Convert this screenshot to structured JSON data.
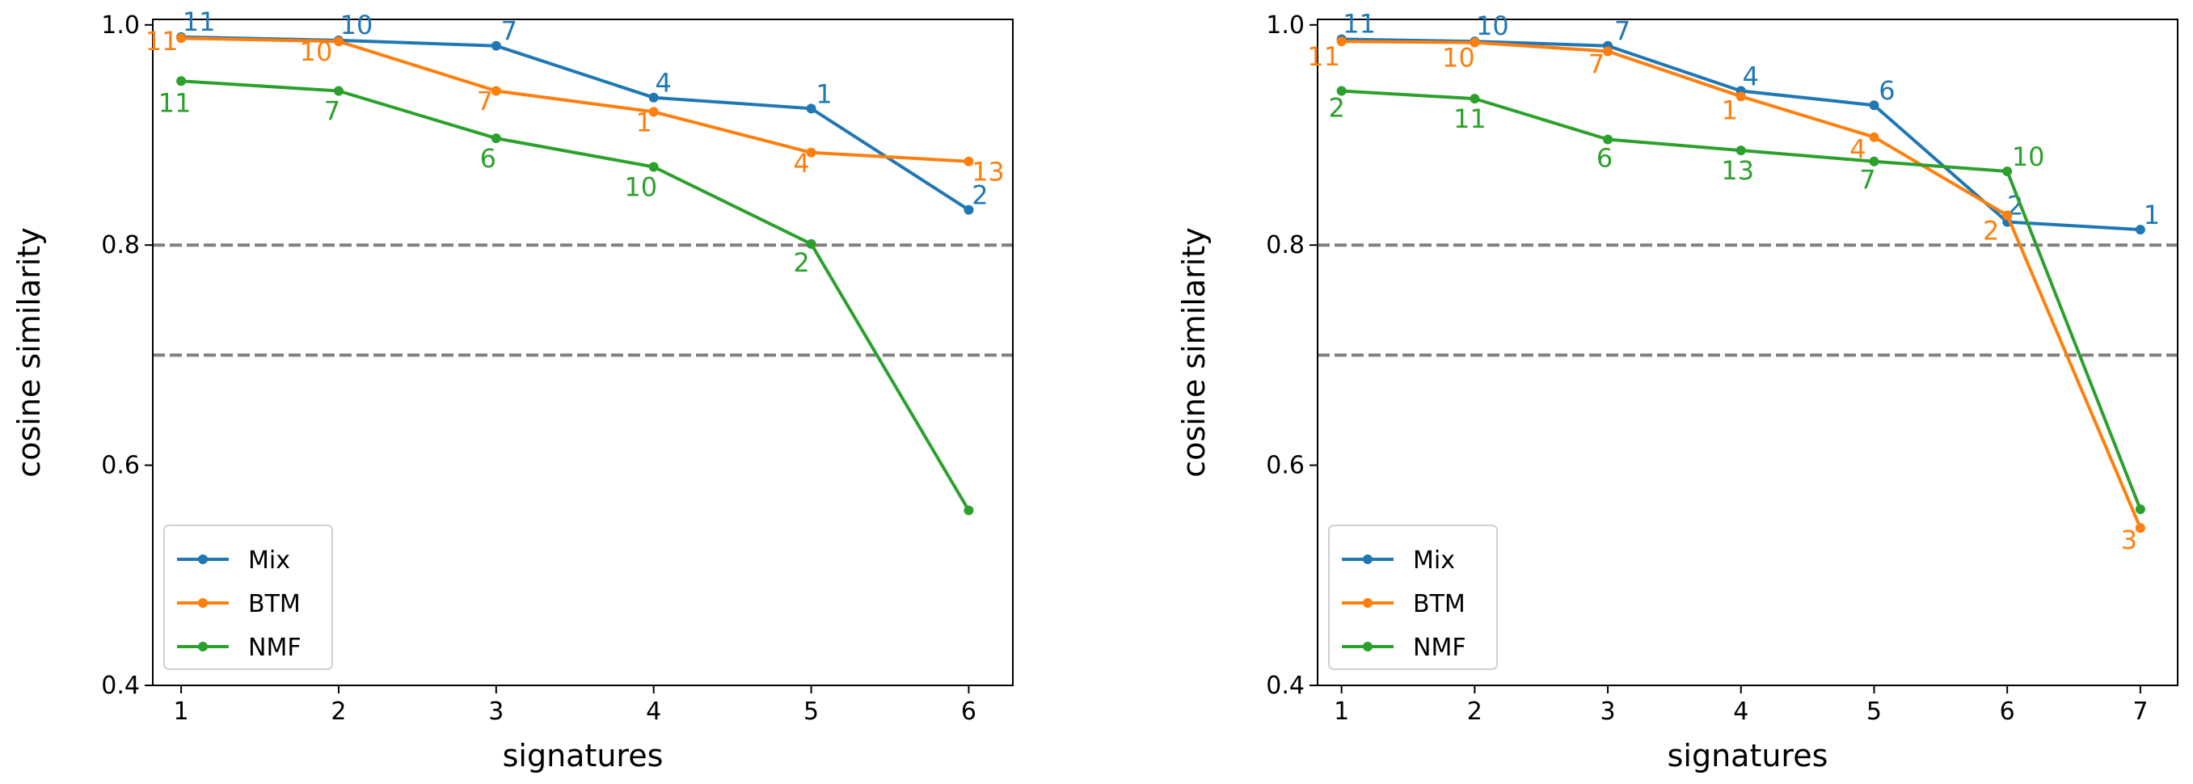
{
  "chart_data": [
    {
      "type": "line",
      "title": "",
      "xlabel": "signatures",
      "ylabel": "cosine similarity",
      "xlim": [
        0.82,
        6.28
      ],
      "ylim": [
        0.4,
        1.005
      ],
      "xticks": [
        1,
        2,
        3,
        4,
        5,
        6
      ],
      "yticks": [
        0.4,
        0.6,
        0.8,
        1.0
      ],
      "ytick_labels": [
        "0.4",
        "0.6",
        "0.8",
        "1.0"
      ],
      "reference_lines": [
        0.8,
        0.7
      ],
      "legend_position": "bottom-left",
      "series": [
        {
          "name": "Mix",
          "color": "#1f77b4",
          "x": [
            1,
            2,
            3,
            4,
            5,
            6
          ],
          "values": [
            0.989,
            0.986,
            0.981,
            0.934,
            0.924,
            0.832
          ],
          "point_labels": [
            "11",
            "10",
            "7",
            "4",
            "1",
            "2"
          ]
        },
        {
          "name": "BTM",
          "color": "#ff7f0e",
          "x": [
            1,
            2,
            3,
            4,
            5,
            6
          ],
          "values": [
            0.988,
            0.985,
            0.94,
            0.921,
            0.884,
            0.876
          ],
          "point_labels": [
            "11",
            "10",
            "7",
            "1",
            "4",
            "13"
          ]
        },
        {
          "name": "NMF",
          "color": "#2ca02c",
          "x": [
            1,
            2,
            3,
            4,
            5,
            6
          ],
          "values": [
            0.949,
            0.94,
            0.897,
            0.871,
            0.801,
            0.559
          ],
          "point_labels": [
            "11",
            "7",
            "6",
            "10",
            "2",
            ""
          ]
        }
      ]
    },
    {
      "type": "line",
      "title": "",
      "xlabel": "signatures",
      "ylabel": "cosine similarity",
      "xlim": [
        0.82,
        7.28
      ],
      "ylim": [
        0.4,
        1.005
      ],
      "xticks": [
        1,
        2,
        3,
        4,
        5,
        6,
        7
      ],
      "yticks": [
        0.4,
        0.6,
        0.8,
        1.0
      ],
      "ytick_labels": [
        "0.4",
        "0.6",
        "0.8",
        "1.0"
      ],
      "reference_lines": [
        0.8,
        0.7
      ],
      "legend_position": "bottom-left",
      "series": [
        {
          "name": "Mix",
          "color": "#1f77b4",
          "x": [
            1,
            2,
            3,
            4,
            5,
            6,
            7
          ],
          "values": [
            0.987,
            0.985,
            0.981,
            0.94,
            0.927,
            0.821,
            0.814
          ],
          "point_labels": [
            "11",
            "10",
            "7",
            "4",
            "6",
            "2",
            "1"
          ]
        },
        {
          "name": "BTM",
          "color": "#ff7f0e",
          "x": [
            1,
            2,
            3,
            4,
            5,
            6,
            7
          ],
          "values": [
            0.985,
            0.984,
            0.976,
            0.935,
            0.898,
            0.827,
            0.543
          ],
          "point_labels": [
            "11",
            "10",
            "7",
            "1",
            "4",
            "2",
            "3"
          ]
        },
        {
          "name": "NMF",
          "color": "#2ca02c",
          "x": [
            1,
            2,
            3,
            4,
            5,
            6,
            7
          ],
          "values": [
            0.94,
            0.933,
            0.896,
            0.886,
            0.876,
            0.867,
            0.56
          ],
          "point_labels": [
            "2",
            "11",
            "6",
            "13",
            "7",
            "10",
            ""
          ]
        }
      ]
    }
  ]
}
